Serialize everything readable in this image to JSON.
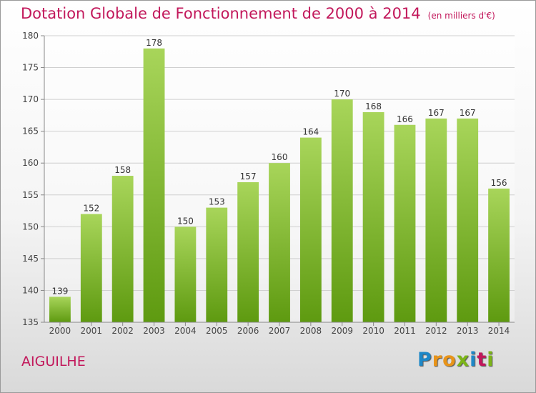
{
  "title": "Dotation Globale de Fonctionnement de 2000 à 2014",
  "subtitle": "(en milliers d'€)",
  "commune": "AIGUILHE",
  "logo": {
    "letters": [
      "P",
      "r",
      "o",
      "x",
      "i",
      "t",
      "i"
    ],
    "colors": [
      "#1e88c8",
      "#e8941a",
      "#e8941a",
      "#7cb518",
      "#1e88c8",
      "#c2185b",
      "#7cb518"
    ]
  },
  "colors": {
    "bar_top": "#a8d55a",
    "bar_bottom": "#5e9a10",
    "title": "#c2185b",
    "axis": "#888888",
    "grid": "#d0d0d0"
  },
  "chart_data": {
    "type": "bar",
    "title": "Dotation Globale de Fonctionnement de 2000 à 2014",
    "subtitle": "(en milliers d'€)",
    "categories": [
      "2000",
      "2001",
      "2002",
      "2003",
      "2004",
      "2005",
      "2006",
      "2007",
      "2008",
      "2009",
      "2010",
      "2011",
      "2012",
      "2013",
      "2014"
    ],
    "values": [
      139,
      152,
      158,
      178,
      150,
      153,
      157,
      160,
      164,
      170,
      168,
      166,
      167,
      167,
      156
    ],
    "ylim": [
      135,
      180
    ],
    "yticks": [
      135,
      140,
      145,
      150,
      155,
      160,
      165,
      170,
      175,
      180
    ],
    "grid": true,
    "data_labels": true
  }
}
